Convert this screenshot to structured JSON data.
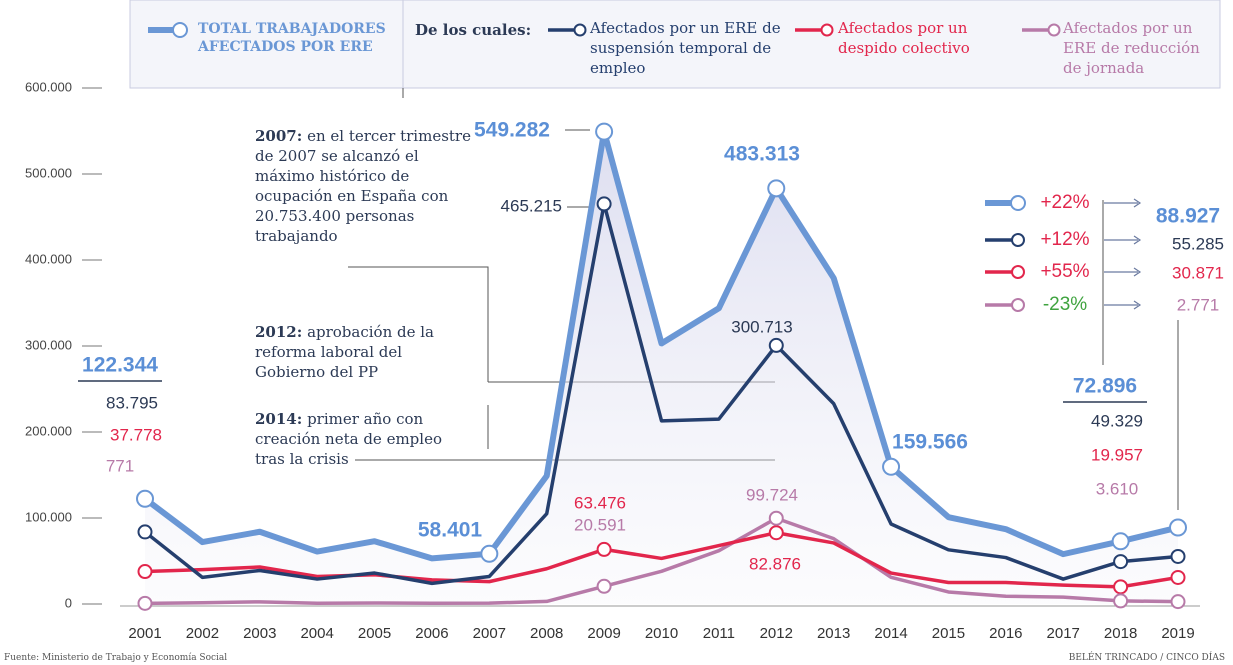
{
  "chart_data": {
    "type": "line",
    "legend_intro": "De los cuales:",
    "categories": [
      "2001",
      "2002",
      "2003",
      "2004",
      "2005",
      "2006",
      "2007",
      "2008",
      "2009",
      "2010",
      "2011",
      "2012",
      "2013",
      "2014",
      "2015",
      "2016",
      "2017",
      "2018",
      "2019"
    ],
    "series": [
      {
        "name": "TOTAL TRABAJADORES AFECTADOS POR ERE",
        "color": "#6a97d5",
        "values": [
          122344,
          72000,
          84000,
          61000,
          73000,
          53000,
          58401,
          149000,
          549282,
          303000,
          344000,
          483313,
          379000,
          159566,
          101000,
          87000,
          58000,
          72896,
          88927
        ],
        "value_labels": [
          "122.344",
          null,
          null,
          null,
          null,
          null,
          "58.401",
          null,
          "549.282",
          null,
          null,
          "483.313",
          null,
          "159.566",
          null,
          null,
          null,
          "72.896",
          "88.927"
        ]
      },
      {
        "name": "Afectados por un ERE de suspensión temporal de empleo",
        "color": "#253f6e",
        "values": [
          83795,
          31000,
          39000,
          29000,
          36000,
          24000,
          32000,
          105000,
          465215,
          213000,
          215000,
          300713,
          233000,
          93000,
          63000,
          54000,
          29000,
          49329,
          55285
        ],
        "value_labels": [
          "83.795",
          null,
          null,
          null,
          null,
          null,
          null,
          null,
          "465.215",
          null,
          null,
          "300.713",
          null,
          null,
          null,
          null,
          null,
          "49.329",
          "55.285"
        ]
      },
      {
        "name": "Afectados por un despido colectivo",
        "color": "#e2264c",
        "values": [
          37778,
          40000,
          43000,
          32000,
          34000,
          28000,
          26000,
          41000,
          63476,
          53000,
          68000,
          82876,
          71000,
          36000,
          25000,
          25000,
          22000,
          19957,
          30871
        ],
        "value_labels": [
          "37.778",
          null,
          null,
          null,
          null,
          null,
          null,
          null,
          "63.476",
          null,
          null,
          "82.876",
          null,
          null,
          null,
          null,
          null,
          "19.957",
          "30.871"
        ]
      },
      {
        "name": "Afectados por un ERE de reducción de jornada",
        "color": "#b77aa8",
        "values": [
          771,
          1500,
          2500,
          900,
          1200,
          900,
          1000,
          3000,
          20591,
          38000,
          62000,
          99724,
          76000,
          31000,
          14000,
          9000,
          8000,
          3610,
          2771
        ],
        "value_labels": [
          "771",
          null,
          null,
          null,
          null,
          null,
          null,
          null,
          "20.591",
          null,
          null,
          "99.724",
          null,
          null,
          null,
          null,
          null,
          "3.610",
          "2.771"
        ]
      }
    ],
    "changes": [
      "+22%",
      "+12%",
      "+55%",
      "-23%"
    ],
    "ylim": [
      0,
      600000
    ],
    "yticks": [
      0,
      {
        "value": 100000,
        "label": "100.000"
      },
      {
        "value": 200000,
        "label": "200.000"
      },
      {
        "value": 300000,
        "label": "300.000"
      },
      {
        "value": 400000,
        "label": "400.000"
      },
      {
        "value": 500000,
        "label": "500.000"
      },
      {
        "value": 600000,
        "label": "600.000"
      }
    ],
    "annotations": [
      {
        "bold": "2007:",
        "text": " en el tercer trimestre de 2007 se alcanzó el máximo histórico de ocupación en España con 20.753.400 personas trabajando"
      },
      {
        "bold": "2012:",
        "text": " aprobación de la reforma laboral del Gobierno del PP"
      },
      {
        "bold": "2014:",
        "text": " primer año con creación neta de empleo tras la crisis"
      }
    ],
    "source": "Fuente: Ministerio de Trabajo y Economía Social",
    "credit": "BELÉN TRINCADO / CINCO DÍAS"
  }
}
